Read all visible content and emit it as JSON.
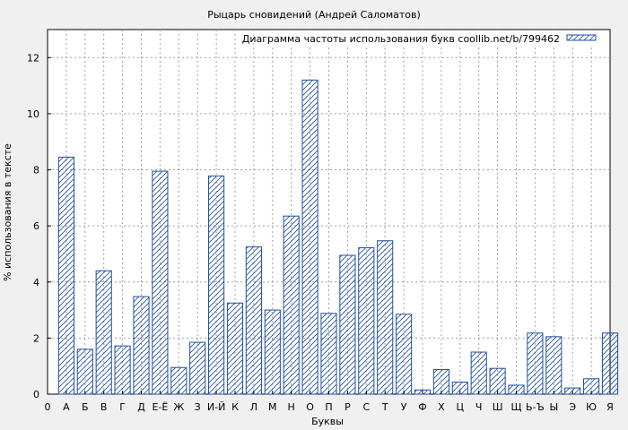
{
  "chart_data": {
    "type": "bar",
    "title": "Рыцарь сновидений (Андрей Саломатов)",
    "xlabel": "Буквы",
    "ylabel": "% использования в тексте",
    "legend": "Диаграмма частоты использования букв coollib.net/b/799462",
    "legend_position": "top-right",
    "grid": true,
    "ylim": [
      0,
      13
    ],
    "yticks": [
      0,
      2,
      4,
      6,
      8,
      10,
      12
    ],
    "xticks": [
      "0",
      "А",
      "Б",
      "В",
      "Г",
      "Д",
      "Е-Ё",
      "Ж",
      "З",
      "И-Й",
      "К",
      "Л",
      "М",
      "Н",
      "О",
      "П",
      "Р",
      "С",
      "Т",
      "У",
      "Ф",
      "Х",
      "Ц",
      "Ч",
      "Ш",
      "Щ",
      "Ь-Ъ",
      "Ы",
      "Э",
      "Ю",
      "Я"
    ],
    "categories": [
      "А",
      "Б",
      "В",
      "Г",
      "Д",
      "Е-Ё",
      "Ж",
      "З",
      "И-Й",
      "К",
      "Л",
      "М",
      "Н",
      "О",
      "П",
      "Р",
      "С",
      "Т",
      "У",
      "Ф",
      "Х",
      "Ц",
      "Ч",
      "Ш",
      "Щ",
      "Ь-Ъ",
      "Ы",
      "Э",
      "Ю",
      "Я"
    ],
    "values": [
      8.45,
      1.6,
      4.4,
      1.72,
      3.48,
      7.95,
      0.95,
      1.85,
      7.78,
      3.25,
      5.25,
      3.0,
      6.35,
      11.2,
      2.88,
      4.95,
      5.22,
      5.47,
      2.85,
      0.15,
      0.88,
      0.43,
      1.5,
      0.92,
      0.32,
      2.18,
      2.05,
      0.22,
      0.55,
      2.18
    ],
    "colors": {
      "bar_stroke": "#1f4fa0",
      "bar_hatch": "#1f4fa0",
      "grid": "#a0a0a0",
      "plot_bg": "#ffffff",
      "page_bg": "#f0f0f0"
    }
  }
}
